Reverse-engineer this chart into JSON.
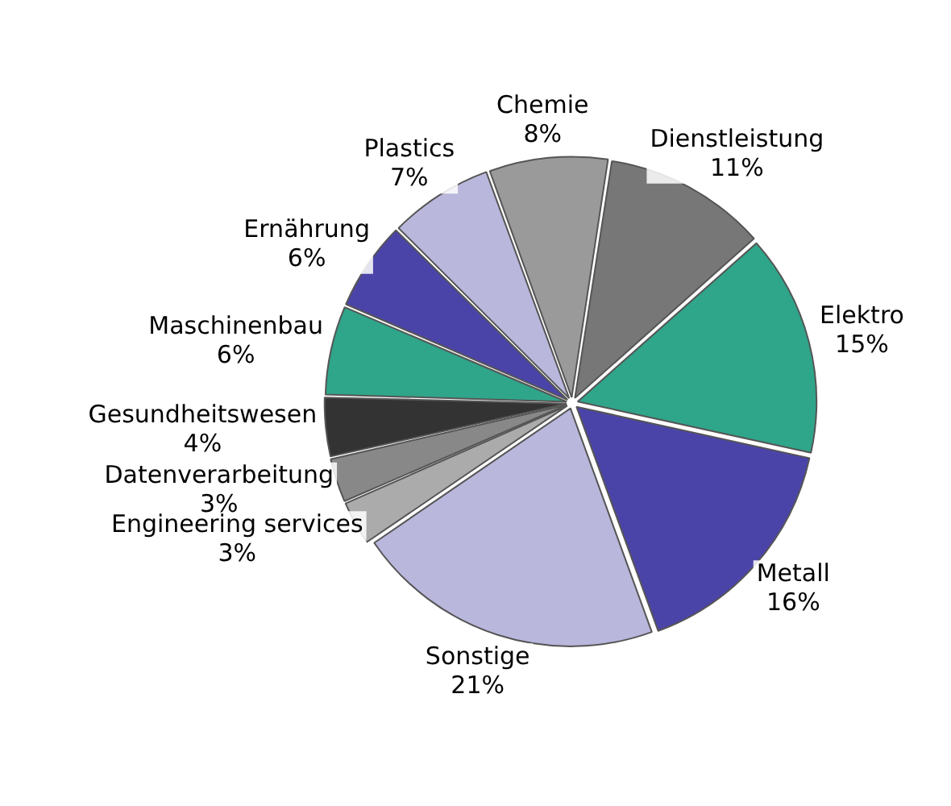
{
  "chart_data": {
    "type": "pie",
    "categories": [
      "Chemie",
      "Dienstleistung",
      "Elektro",
      "Metall",
      "Sonstige",
      "Engineering services",
      "Datenverarbeitung",
      "Gesundheitswesen",
      "Maschinenbau",
      "Ernährung",
      "Plastics"
    ],
    "values": [
      8,
      11,
      15,
      16,
      21,
      3,
      3,
      4,
      6,
      6,
      7
    ],
    "colors": [
      "#9a9a9a",
      "#777777",
      "#2fa58a",
      "#4b44a8",
      "#b9b7dc",
      "#ababab",
      "#888888",
      "#333333",
      "#2fa58a",
      "#4b44a8",
      "#b9b7dc"
    ],
    "value_labels": [
      "8%",
      "11%",
      "15%",
      "16%",
      "21%",
      "3%",
      "3%",
      "4%",
      "6%",
      "6%",
      "7%"
    ],
    "legend": false
  }
}
